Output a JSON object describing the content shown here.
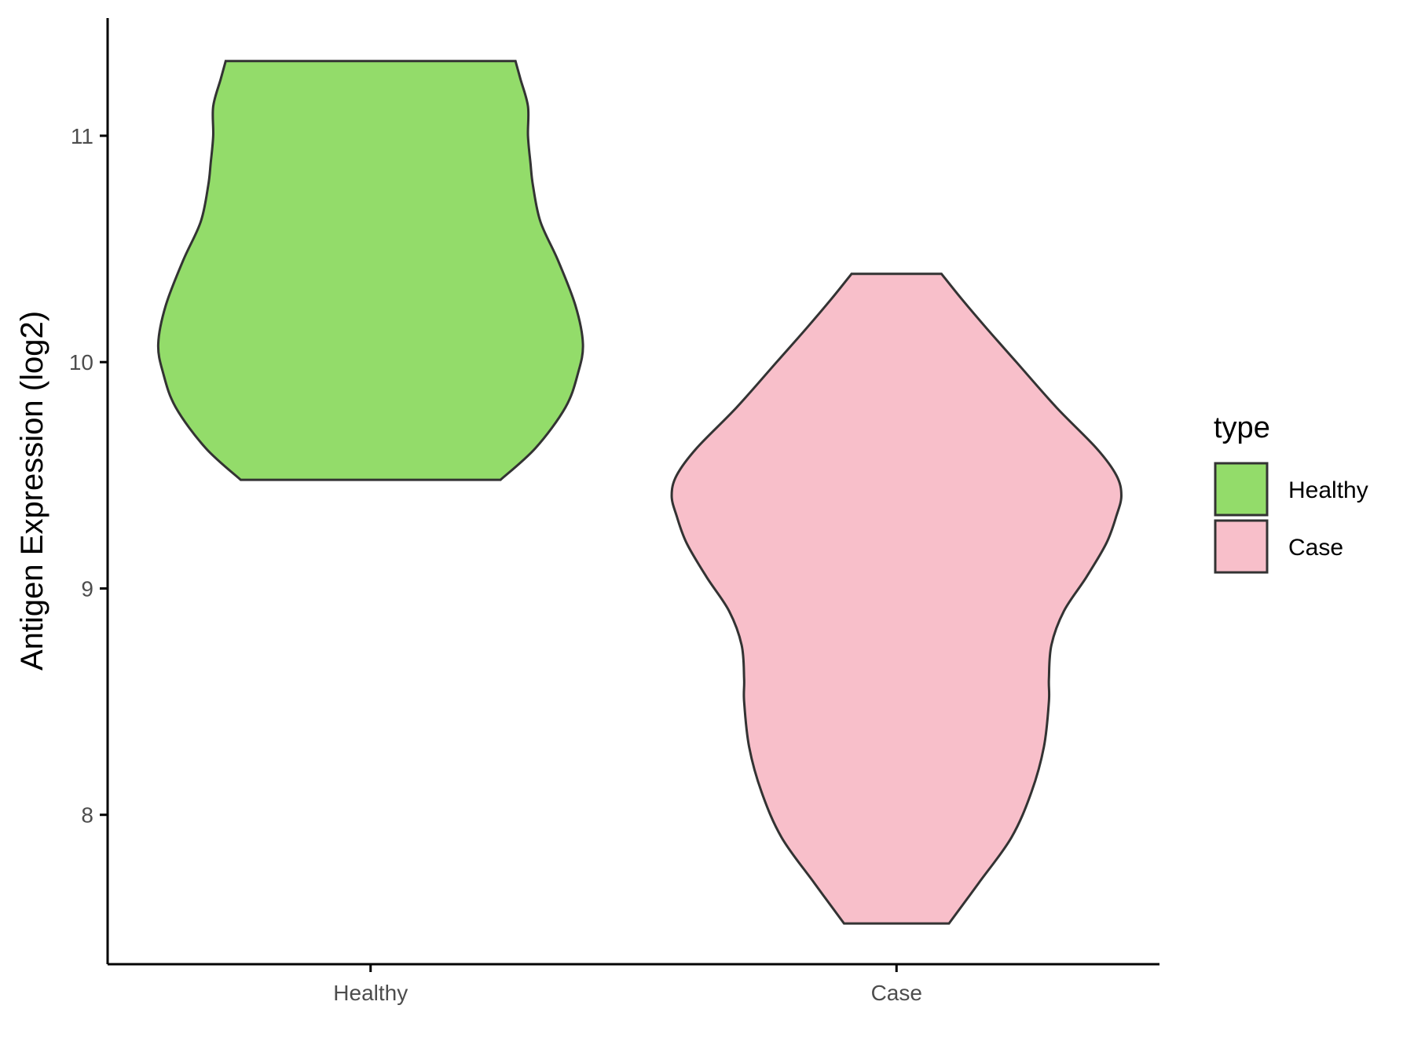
{
  "chart_data": {
    "type": "violin",
    "title": "",
    "xlabel": "",
    "ylabel": "Antigen Expression (log2)",
    "categories": [
      "Healthy",
      "Case"
    ],
    "ylim": [
      7.34,
      11.52
    ],
    "yticks": [
      8,
      9,
      10,
      11
    ],
    "grid": false,
    "legend": {
      "title": "type",
      "position": "right",
      "entries": [
        "Healthy",
        "Case"
      ]
    },
    "series": [
      {
        "name": "Healthy",
        "color": "#93DC6A",
        "min": 9.48,
        "max": 11.33,
        "density_profile": [
          {
            "y": 9.48,
            "w": 0.52
          },
          {
            "y": 9.62,
            "w": 0.66
          },
          {
            "y": 9.8,
            "w": 0.78
          },
          {
            "y": 9.95,
            "w": 0.83
          },
          {
            "y": 10.08,
            "w": 0.85
          },
          {
            "y": 10.25,
            "w": 0.82
          },
          {
            "y": 10.45,
            "w": 0.75
          },
          {
            "y": 10.62,
            "w": 0.68
          },
          {
            "y": 10.78,
            "w": 0.65
          },
          {
            "y": 10.88,
            "w": 0.64
          },
          {
            "y": 11.0,
            "w": 0.63
          },
          {
            "y": 11.13,
            "w": 0.63
          },
          {
            "y": 11.25,
            "w": 0.6
          },
          {
            "y": 11.33,
            "w": 0.58
          }
        ]
      },
      {
        "name": "Case",
        "color": "#F8BFCA",
        "min": 7.52,
        "max": 10.39,
        "density_profile": [
          {
            "y": 7.52,
            "w": 0.21
          },
          {
            "y": 7.7,
            "w": 0.33
          },
          {
            "y": 7.9,
            "w": 0.46
          },
          {
            "y": 8.1,
            "w": 0.54
          },
          {
            "y": 8.3,
            "w": 0.59
          },
          {
            "y": 8.5,
            "w": 0.61
          },
          {
            "y": 8.6,
            "w": 0.61
          },
          {
            "y": 8.75,
            "w": 0.62
          },
          {
            "y": 8.9,
            "w": 0.67
          },
          {
            "y": 9.05,
            "w": 0.76
          },
          {
            "y": 9.2,
            "w": 0.84
          },
          {
            "y": 9.32,
            "w": 0.88
          },
          {
            "y": 9.41,
            "w": 0.9
          },
          {
            "y": 9.5,
            "w": 0.88
          },
          {
            "y": 9.62,
            "w": 0.8
          },
          {
            "y": 9.8,
            "w": 0.64
          },
          {
            "y": 10.0,
            "w": 0.48
          },
          {
            "y": 10.15,
            "w": 0.36
          },
          {
            "y": 10.28,
            "w": 0.26
          },
          {
            "y": 10.39,
            "w": 0.18
          }
        ]
      }
    ],
    "outline_color": "#333333"
  }
}
